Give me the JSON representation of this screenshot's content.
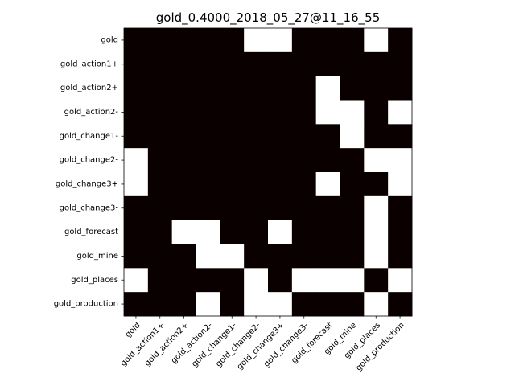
{
  "chart_data": {
    "type": "heatmap",
    "title": "gold_0.4000_2018_05_27@11_16_55",
    "xlabel": "",
    "ylabel": "",
    "x_categories": [
      "gold",
      "gold_action1+",
      "gold_action2+",
      "gold_action2-",
      "gold_change1-",
      "gold_change2-",
      "gold_change3+",
      "gold_change3-",
      "gold_forecast",
      "gold_mine",
      "gold_places",
      "gold_production"
    ],
    "y_categories": [
      "gold",
      "gold_action1+",
      "gold_action2+",
      "gold_action2-",
      "gold_change1-",
      "gold_change2-",
      "gold_change3+",
      "gold_change3-",
      "gold_forecast",
      "gold_mine",
      "gold_places",
      "gold_production"
    ],
    "values": [
      [
        0,
        0,
        0,
        0,
        0,
        1,
        1,
        0,
        0,
        0,
        1,
        0
      ],
      [
        0,
        0,
        0,
        0,
        0,
        0,
        0,
        0,
        0,
        0,
        0,
        0
      ],
      [
        0,
        0,
        0,
        0,
        0,
        0,
        0,
        0,
        1,
        0,
        0,
        0
      ],
      [
        0,
        0,
        0,
        0,
        0,
        0,
        0,
        0,
        1,
        1,
        0,
        1
      ],
      [
        0,
        0,
        0,
        0,
        0,
        0,
        0,
        0,
        0,
        1,
        0,
        0
      ],
      [
        1,
        0,
        0,
        0,
        0,
        0,
        0,
        0,
        0,
        0,
        1,
        1
      ],
      [
        1,
        0,
        0,
        0,
        0,
        0,
        0,
        0,
        1,
        0,
        0,
        1
      ],
      [
        0,
        0,
        0,
        0,
        0,
        0,
        0,
        0,
        0,
        0,
        1,
        0
      ],
      [
        0,
        0,
        1,
        1,
        0,
        0,
        1,
        0,
        0,
        0,
        1,
        0
      ],
      [
        0,
        0,
        0,
        1,
        1,
        0,
        0,
        0,
        0,
        0,
        1,
        0
      ],
      [
        1,
        0,
        0,
        0,
        0,
        1,
        0,
        1,
        1,
        1,
        0,
        1
      ],
      [
        0,
        0,
        0,
        1,
        0,
        1,
        1,
        0,
        0,
        0,
        1,
        0
      ]
    ],
    "colors": {
      "zero": "#0b0000",
      "one": "#ffffff"
    },
    "grid": false,
    "legend": "none"
  }
}
